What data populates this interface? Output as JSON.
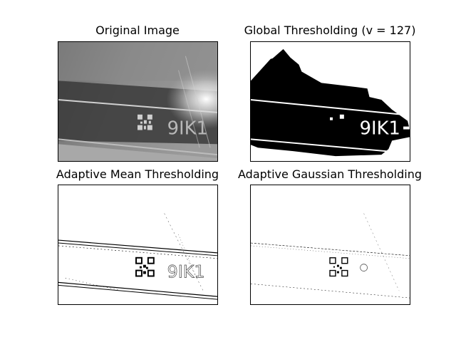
{
  "figure": {
    "panels": [
      {
        "id": "original",
        "title": "Original Image",
        "image_icon": "grayscale-photo-icon"
      },
      {
        "id": "global",
        "title": "Global Thresholding (v = 127)",
        "image_icon": "binary-threshold-icon"
      },
      {
        "id": "mean",
        "title": "Adaptive Mean Thresholding",
        "image_icon": "binary-threshold-icon"
      },
      {
        "id": "gaussian",
        "title": "Adaptive Gaussian Thresholding",
        "image_icon": "binary-threshold-icon"
      }
    ],
    "printed_code": "9IK1"
  }
}
